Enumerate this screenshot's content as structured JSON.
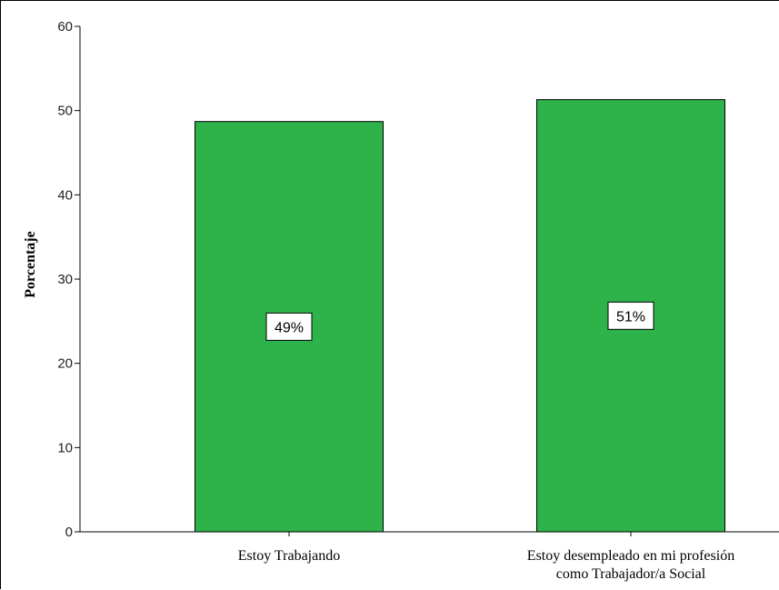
{
  "chart_data": {
    "type": "bar",
    "categories": [
      "Estoy Trabajando",
      "Estoy desempleado en mi profesión como Trabajador/a Social"
    ],
    "category_label_lines": [
      [
        "Estoy Trabajando"
      ],
      [
        "Estoy desempleado en mi profesión",
        "como Trabajador/a Social"
      ]
    ],
    "values": [
      48.7,
      51.3
    ],
    "data_labels": [
      "49%",
      "51%"
    ],
    "title": "",
    "xlabel": "",
    "ylabel": "Porcentaje",
    "ylim": [
      0,
      60
    ],
    "yticks": [
      0,
      10,
      20,
      30,
      40,
      50,
      60
    ],
    "grid": false,
    "bar_color": "#2db34a",
    "bar_edge_color": "#000000"
  }
}
